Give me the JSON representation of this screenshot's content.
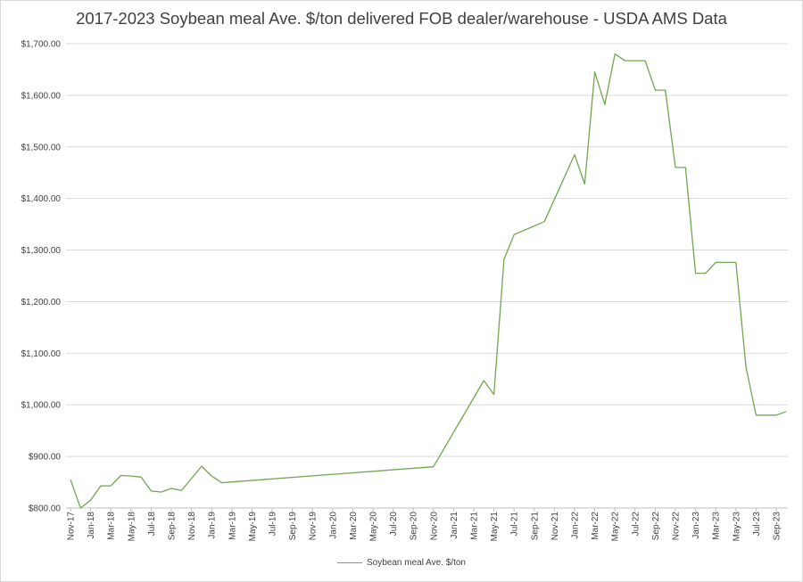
{
  "chart_data": {
    "type": "line",
    "title": "2017-2023 Soybean meal Ave. $/ton delivered FOB dealer/warehouse - USDA AMS Data",
    "ylim": [
      800,
      1700
    ],
    "y_ticks": [
      "$800.00",
      "$900.00",
      "$1,000.00",
      "$1,100.00",
      "$1,200.00",
      "$1,300.00",
      "$1,400.00",
      "$1,500.00",
      "$1,600.00",
      "$1,700.00"
    ],
    "x_ticks": [
      "Nov-17",
      "Jan-18",
      "Mar-18",
      "May-18",
      "Jul-18",
      "Sep-18",
      "Nov-18",
      "Jan-19",
      "Mar-19",
      "May-19",
      "Jul-19",
      "Sep-19",
      "Nov-19",
      "Jan-20",
      "Mar-20",
      "May-20",
      "Jul-20",
      "Sep-20",
      "Nov-20",
      "Jan-21",
      "Mar-21",
      "May-21",
      "Jul-21",
      "Sep-21",
      "Nov-21",
      "Jan-22",
      "Mar-22",
      "May-22",
      "Jul-22",
      "Sep-22",
      "Nov-22",
      "Jan-23",
      "Mar-23",
      "May-23",
      "Jul-23",
      "Sep-23"
    ],
    "grid": true,
    "legend_position": "bottom",
    "color": "#70a750",
    "series": [
      {
        "name": "Soybean meal Ave. $/ton",
        "points": [
          {
            "x": "2017-11",
            "y": 855
          },
          {
            "x": "2017-12",
            "y": 800
          },
          {
            "x": "2018-01",
            "y": 815
          },
          {
            "x": "2018-02",
            "y": 843
          },
          {
            "x": "2018-03",
            "y": 843
          },
          {
            "x": "2018-04",
            "y": 863
          },
          {
            "x": "2018-05",
            "y": 862
          },
          {
            "x": "2018-06",
            "y": 860
          },
          {
            "x": "2018-07",
            "y": 833
          },
          {
            "x": "2018-08",
            "y": 831
          },
          {
            "x": "2018-09",
            "y": 838
          },
          {
            "x": "2018-10",
            "y": 834
          },
          {
            "x": "2018-11",
            "y": 857
          },
          {
            "x": "2018-12",
            "y": 881
          },
          {
            "x": "2019-01",
            "y": 862
          },
          {
            "x": "2019-02",
            "y": 849
          },
          {
            "x": "2020-11",
            "y": 880
          },
          {
            "x": "2021-04",
            "y": 1047
          },
          {
            "x": "2021-05",
            "y": 1020
          },
          {
            "x": "2021-06",
            "y": 1282
          },
          {
            "x": "2021-07",
            "y": 1330
          },
          {
            "x": "2021-10",
            "y": 1355
          },
          {
            "x": "2022-01",
            "y": 1485
          },
          {
            "x": "2022-02",
            "y": 1428
          },
          {
            "x": "2022-03",
            "y": 1645
          },
          {
            "x": "2022-04",
            "y": 1582
          },
          {
            "x": "2022-05",
            "y": 1680
          },
          {
            "x": "2022-06",
            "y": 1667
          },
          {
            "x": "2022-08",
            "y": 1667
          },
          {
            "x": "2022-09",
            "y": 1610
          },
          {
            "x": "2022-10",
            "y": 1610
          },
          {
            "x": "2022-11",
            "y": 1460
          },
          {
            "x": "2022-12",
            "y": 1460
          },
          {
            "x": "2023-01",
            "y": 1255
          },
          {
            "x": "2023-02",
            "y": 1255
          },
          {
            "x": "2023-03",
            "y": 1276
          },
          {
            "x": "2023-05",
            "y": 1276
          },
          {
            "x": "2023-06",
            "y": 1073
          },
          {
            "x": "2023-07",
            "y": 980
          },
          {
            "x": "2023-09",
            "y": 980
          },
          {
            "x": "2023-10",
            "y": 987
          }
        ]
      }
    ]
  }
}
